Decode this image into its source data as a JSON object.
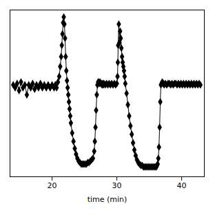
{
  "chart_data": {
    "type": "line",
    "xlabel": "time (min)",
    "x": [
      14.0,
      14.3,
      14.6,
      14.9,
      15.2,
      15.5,
      15.8,
      16.1,
      16.4,
      16.7,
      17.0,
      17.3,
      17.6,
      17.9,
      18.2,
      18.5,
      18.8,
      19.1,
      19.4,
      19.7,
      20.0,
      20.3,
      20.5,
      20.7,
      20.9,
      21.1,
      21.25,
      21.4,
      21.5,
      21.6,
      21.7,
      21.8,
      21.9,
      22.0,
      22.1,
      22.2,
      22.3,
      22.4,
      22.5,
      22.6,
      22.7,
      22.8,
      22.9,
      23.1,
      23.3,
      23.5,
      23.7,
      23.9,
      24.1,
      24.3,
      24.5,
      24.7,
      24.9,
      25.1,
      25.3,
      25.5,
      25.7,
      25.9,
      26.1,
      26.3,
      26.5,
      26.6,
      26.7,
      26.8,
      26.9,
      27.0,
      27.1,
      27.2,
      27.3,
      27.4,
      27.5,
      27.6,
      27.7,
      27.8,
      27.9,
      28.0,
      28.2,
      28.4,
      28.6,
      28.8,
      29.0,
      29.2,
      29.4,
      29.6,
      29.8,
      30.0,
      30.1,
      30.15,
      30.2,
      30.3,
      30.4,
      30.5,
      30.6,
      30.7,
      30.8,
      30.9,
      31.0,
      31.1,
      31.2,
      31.3,
      31.5,
      31.7,
      31.9,
      32.1,
      32.3,
      32.5,
      32.7,
      32.9,
      33.1,
      33.3,
      33.5,
      33.7,
      33.9,
      34.1,
      34.3,
      34.5,
      34.7,
      34.9,
      35.1,
      35.3,
      35.5,
      35.7,
      35.9,
      36.1,
      36.2,
      36.3,
      36.4,
      36.5,
      36.6,
      36.7,
      36.8,
      36.9,
      37.0,
      37.1,
      37.2,
      37.3,
      37.5,
      37.7,
      37.9,
      38.1,
      38.3,
      38.5,
      38.7,
      38.9,
      39.1,
      39.3,
      39.5,
      39.7,
      39.9,
      40.1,
      40.3,
      40.5,
      40.7,
      40.9,
      41.1,
      41.3,
      41.5,
      41.7,
      41.9,
      42.1,
      42.3,
      42.5,
      42.7,
      42.9
    ],
    "values": [
      0.62,
      0.6,
      0.63,
      0.58,
      0.64,
      0.6,
      0.62,
      0.55,
      0.62,
      0.6,
      0.63,
      0.59,
      0.62,
      0.6,
      0.63,
      0.6,
      0.62,
      0.6,
      0.62,
      0.6,
      0.62,
      0.6,
      0.62,
      0.6,
      0.64,
      0.68,
      0.75,
      0.82,
      0.9,
      0.98,
      1.06,
      1.1,
      1.05,
      0.95,
      0.82,
      0.72,
      0.65,
      0.6,
      0.55,
      0.5,
      0.45,
      0.4,
      0.35,
      0.28,
      0.22,
      0.17,
      0.13,
      0.1,
      0.08,
      0.07,
      0.06,
      0.06,
      0.06,
      0.06,
      0.06,
      0.07,
      0.07,
      0.08,
      0.09,
      0.1,
      0.15,
      0.22,
      0.32,
      0.44,
      0.55,
      0.62,
      0.64,
      0.64,
      0.63,
      0.64,
      0.63,
      0.63,
      0.62,
      0.63,
      0.62,
      0.63,
      0.62,
      0.63,
      0.62,
      0.63,
      0.62,
      0.63,
      0.62,
      0.63,
      0.62,
      0.63,
      0.68,
      0.78,
      0.9,
      1.05,
      0.92,
      1.0,
      0.95,
      0.88,
      0.82,
      0.78,
      0.75,
      0.72,
      0.68,
      0.63,
      0.56,
      0.48,
      0.4,
      0.33,
      0.27,
      0.21,
      0.16,
      0.12,
      0.09,
      0.07,
      0.06,
      0.05,
      0.05,
      0.04,
      0.04,
      0.04,
      0.04,
      0.04,
      0.04,
      0.04,
      0.04,
      0.04,
      0.04,
      0.04,
      0.05,
      0.06,
      0.1,
      0.18,
      0.32,
      0.5,
      0.62,
      0.63,
      0.64,
      0.63,
      0.63,
      0.62,
      0.63,
      0.62,
      0.63,
      0.63,
      0.62,
      0.63,
      0.62,
      0.63,
      0.63,
      0.62,
      0.63,
      0.62,
      0.63,
      0.62,
      0.63,
      0.62,
      0.63,
      0.62,
      0.63,
      0.62,
      0.63,
      0.62,
      0.63,
      0.62,
      0.63,
      0.62,
      0.63,
      0.62
    ],
    "color": "#000000",
    "marker": "diamond",
    "xlim": [
      13.5,
      43.5
    ],
    "ylim": [
      -0.03,
      1.15
    ],
    "xticks": [
      20,
      30,
      40
    ],
    "yticks": [],
    "tick_labels": "x"
  }
}
